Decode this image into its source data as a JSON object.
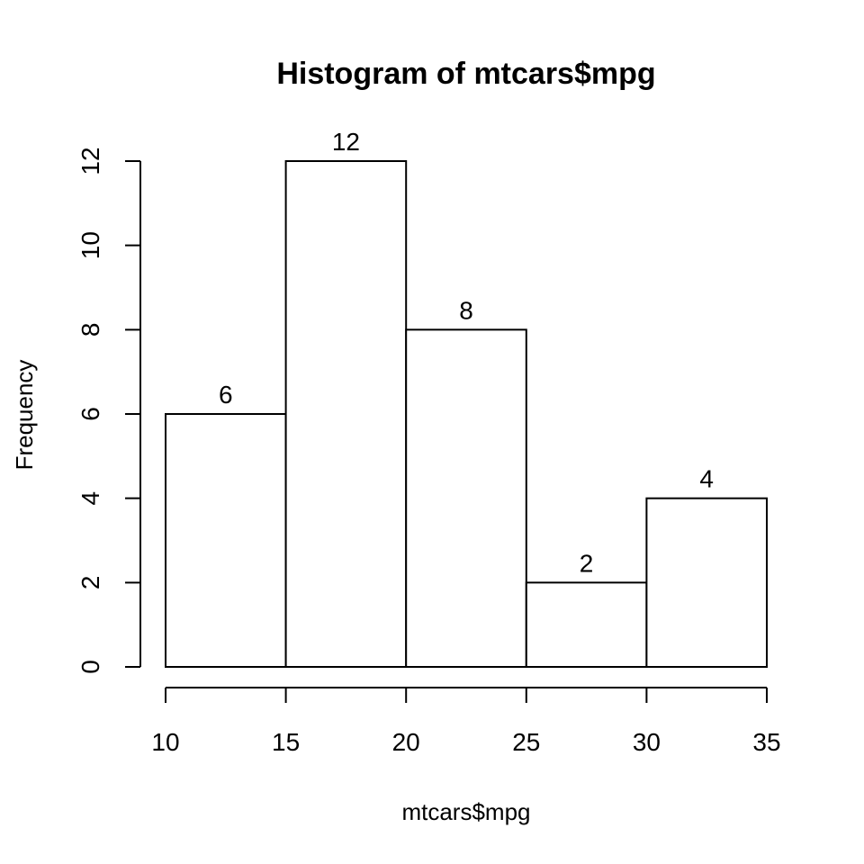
{
  "chart_data": {
    "type": "bar",
    "title": "Histogram of mtcars$mpg",
    "xlabel": "mtcars$mpg",
    "ylabel": "Frequency",
    "bins": [
      {
        "start": 10,
        "end": 15,
        "count": 6
      },
      {
        "start": 15,
        "end": 20,
        "count": 12
      },
      {
        "start": 20,
        "end": 25,
        "count": 8
      },
      {
        "start": 25,
        "end": 30,
        "count": 2
      },
      {
        "start": 30,
        "end": 35,
        "count": 4
      }
    ],
    "xlim": [
      10,
      35
    ],
    "ylim": [
      0,
      12
    ],
    "x_ticks": [
      "10",
      "15",
      "20",
      "25",
      "30",
      "35"
    ],
    "y_ticks": [
      "0",
      "2",
      "4",
      "6",
      "8",
      "10",
      "12"
    ],
    "bar_labels": [
      "6",
      "12",
      "8",
      "2",
      "4"
    ],
    "grid": false,
    "legend": "none",
    "bar_fill": "#ffffff",
    "bar_stroke": "#000000"
  }
}
